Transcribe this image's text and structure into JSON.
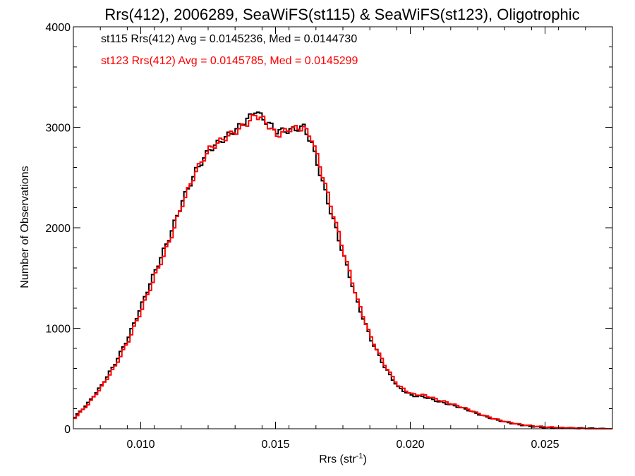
{
  "chart_data": {
    "type": "line",
    "title": "Rrs(412), 2006289, SeaWiFS(st115) & SeaWiFS(st123), Oligotrophic",
    "xlabel_main": "Rrs (str",
    "xlabel_sup": "-1",
    "xlabel_tail": ")",
    "ylabel": "Number of Observations",
    "xlim": [
      0.0075,
      0.0275
    ],
    "ylim": [
      0,
      4000
    ],
    "xticks": [
      {
        "value": 0.01,
        "label": "0.010"
      },
      {
        "value": 0.015,
        "label": "0.015"
      },
      {
        "value": 0.02,
        "label": "0.020"
      },
      {
        "value": 0.025,
        "label": "0.025"
      }
    ],
    "yticks": [
      {
        "value": 0,
        "label": "0"
      },
      {
        "value": 1000,
        "label": "1000"
      },
      {
        "value": 2000,
        "label": "2000"
      },
      {
        "value": 3000,
        "label": "3000"
      },
      {
        "value": 4000,
        "label": "4000"
      }
    ],
    "grid": false,
    "legend_position": "top-left",
    "series": [
      {
        "name": "st115 Rrs(412) Avg = 0.0145236, Med = 0.0144730",
        "color": "#000000",
        "x": [
          0.0075,
          0.008,
          0.0085,
          0.009,
          0.0095,
          0.01,
          0.0105,
          0.011,
          0.0115,
          0.012,
          0.0125,
          0.013,
          0.0135,
          0.014,
          0.0142,
          0.0145,
          0.015,
          0.0155,
          0.016,
          0.0163,
          0.0166,
          0.017,
          0.0175,
          0.018,
          0.0185,
          0.019,
          0.0195,
          0.02,
          0.0205,
          0.021,
          0.0215,
          0.022,
          0.0225,
          0.023,
          0.0235,
          0.024,
          0.0245,
          0.025,
          0.0255,
          0.026,
          0.0265,
          0.027,
          0.0275
        ],
        "y": [
          120,
          260,
          430,
          640,
          900,
          1230,
          1580,
          1920,
          2300,
          2590,
          2780,
          2860,
          2950,
          3080,
          3150,
          3080,
          2980,
          3000,
          3030,
          2850,
          2550,
          2150,
          1680,
          1230,
          880,
          620,
          420,
          340,
          320,
          270,
          230,
          190,
          140,
          100,
          70,
          45,
          25,
          12,
          6,
          3,
          1,
          0,
          0
        ]
      },
      {
        "name": "st123 Rrs(412) Avg = 0.0145785, Med = 0.0145299",
        "color": "#ff0000",
        "x": [
          0.0075,
          0.008,
          0.0085,
          0.009,
          0.0095,
          0.01,
          0.0105,
          0.011,
          0.0115,
          0.012,
          0.0125,
          0.013,
          0.0135,
          0.014,
          0.0142,
          0.0145,
          0.015,
          0.0155,
          0.016,
          0.0163,
          0.0166,
          0.017,
          0.0175,
          0.018,
          0.0185,
          0.019,
          0.0195,
          0.02,
          0.0205,
          0.021,
          0.0215,
          0.022,
          0.0225,
          0.023,
          0.0235,
          0.024,
          0.0245,
          0.025,
          0.0255,
          0.026,
          0.0265,
          0.027,
          0.0275
        ],
        "y": [
          110,
          240,
          410,
          610,
          870,
          1200,
          1550,
          1880,
          2260,
          2560,
          2760,
          2850,
          2940,
          3060,
          3130,
          3100,
          2950,
          3010,
          3000,
          2880,
          2600,
          2200,
          1720,
          1270,
          910,
          650,
          440,
          350,
          330,
          280,
          240,
          200,
          150,
          110,
          75,
          48,
          28,
          14,
          7,
          3,
          1,
          0,
          0
        ]
      }
    ]
  }
}
